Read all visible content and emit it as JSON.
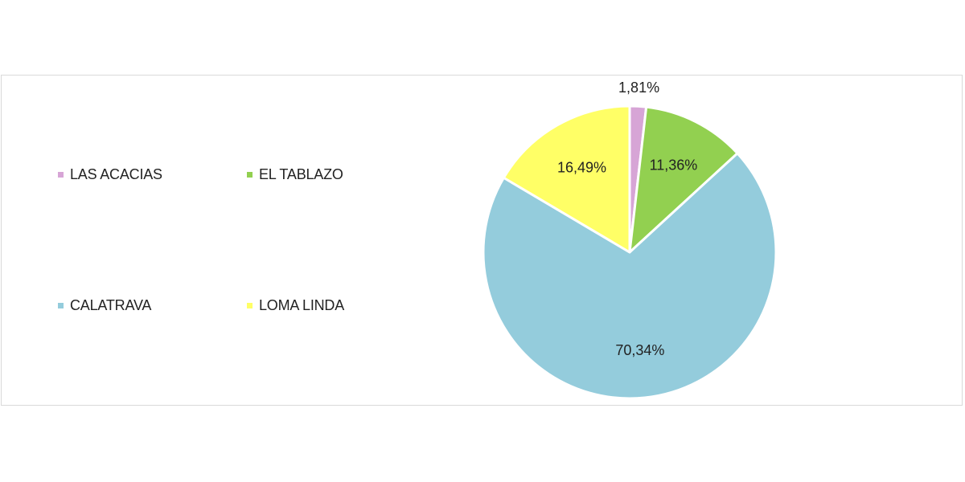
{
  "chart_data": {
    "type": "pie",
    "title": "",
    "slices": [
      {
        "label": "LAS ACACIAS",
        "value": 1.81,
        "display": "1,81%",
        "color": "#d7a5d6"
      },
      {
        "label": "EL TABLAZO",
        "value": 11.36,
        "display": "11,36%",
        "color": "#92d050"
      },
      {
        "label": "CALATRAVA",
        "value": 70.34,
        "display": "70,34%",
        "color": "#94ccdc"
      },
      {
        "label": "LOMA LINDA",
        "value": 16.49,
        "display": "16,49%",
        "color": "#ffff66"
      }
    ],
    "legend_position": "left",
    "legend": [
      {
        "label": "LAS ACACIAS",
        "color": "#d7a5d6"
      },
      {
        "label": "EL TABLAZO",
        "color": "#92d050"
      },
      {
        "label": "CALATRAVA",
        "color": "#94ccdc"
      },
      {
        "label": "LOMA LINDA",
        "color": "#ffff66"
      }
    ],
    "slice_border_color": "#ffffff"
  }
}
